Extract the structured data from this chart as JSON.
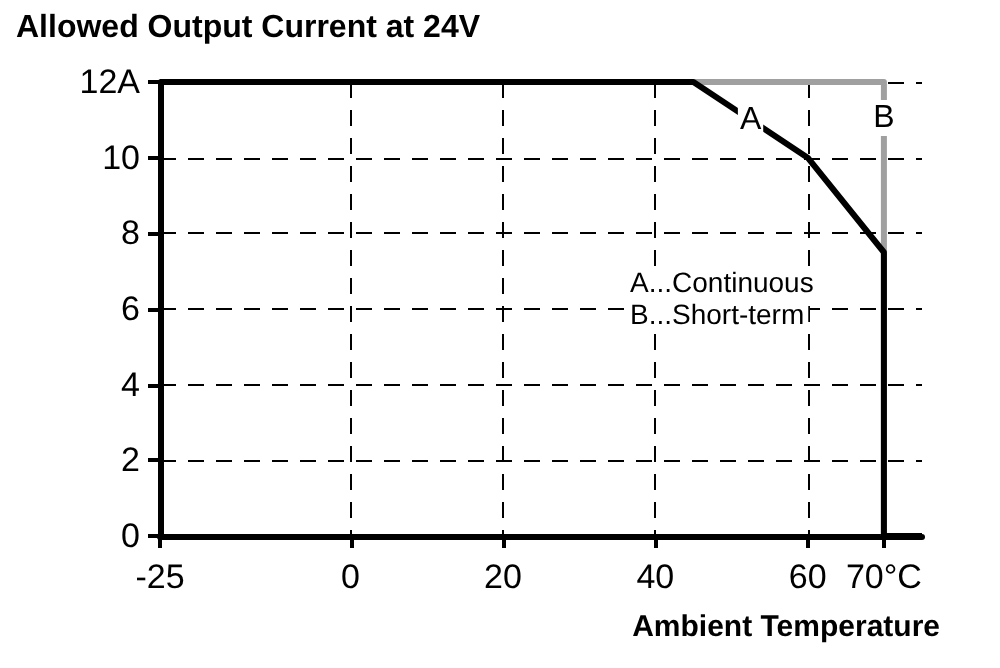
{
  "chart_data": {
    "type": "line",
    "title": "Allowed Output Current at 24V",
    "xlabel": "Ambient Temperature",
    "series": [
      {
        "name": "B",
        "color": "#a0a0a0",
        "x": [
          45,
          70,
          70
        ],
        "values": [
          12,
          12,
          0
        ]
      },
      {
        "name": "A",
        "color": "#000000",
        "x": [
          -25,
          45,
          60,
          70,
          70,
          75
        ],
        "values": [
          12,
          12,
          10,
          7.5,
          0,
          0
        ]
      }
    ],
    "xlim": [
      -25,
      75
    ],
    "xticks": [
      -25,
      0,
      20,
      40,
      60,
      {
        "value": 70,
        "label": "70°C"
      }
    ],
    "ylim": [
      0,
      12
    ],
    "yticks": [
      0,
      2,
      4,
      6,
      8,
      10,
      {
        "value": 12,
        "label": "12A"
      }
    ],
    "grid": true,
    "marker": "none",
    "line_style": "solid",
    "legend": false,
    "annotations": [
      "A...Continuous",
      "B...Short-term"
    ]
  }
}
